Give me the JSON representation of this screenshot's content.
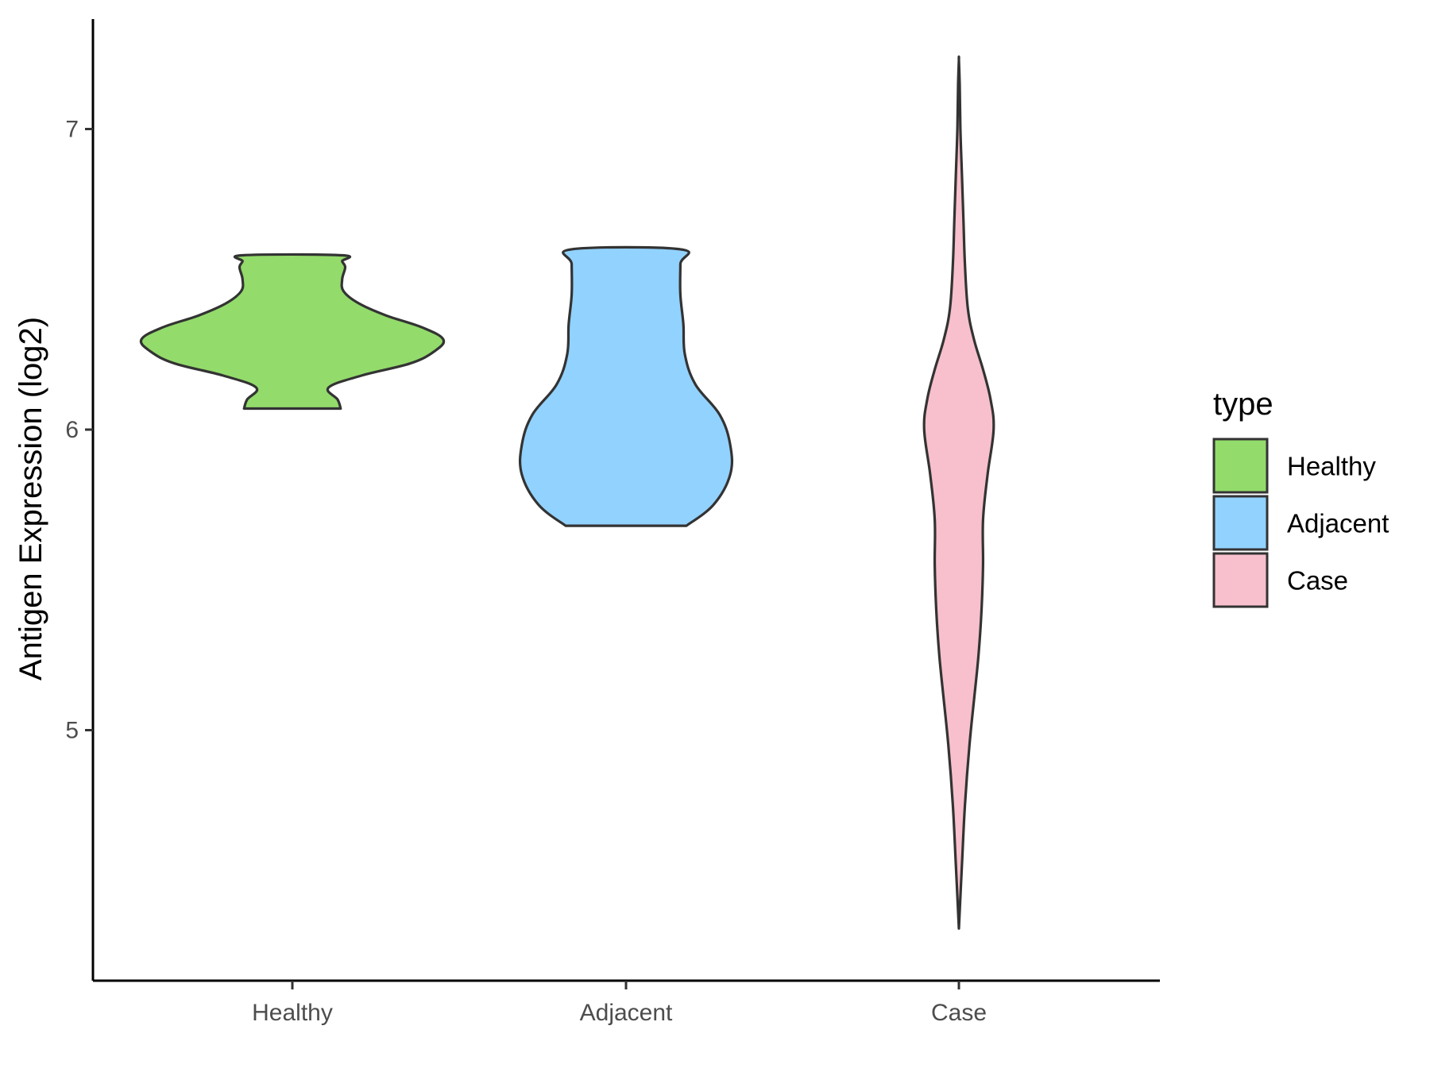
{
  "chart_data": {
    "type": "violin",
    "title": "",
    "xlabel": "",
    "ylabel": "Antigen Expression (log2)",
    "ylim": [
      4.2,
      7.37
    ],
    "yticks": [
      5,
      6,
      7
    ],
    "grid": false,
    "legend": {
      "title": "type",
      "position": "right",
      "entries": [
        "Healthy",
        "Adjacent",
        "Case"
      ]
    },
    "categories": [
      "Healthy",
      "Adjacent",
      "Case"
    ],
    "series": [
      {
        "name": "Healthy",
        "color": "#93DB6B",
        "range": [
          6.07,
          6.58
        ],
        "density": [
          [
            6.07,
            0.32
          ],
          [
            6.1,
            0.3
          ],
          [
            6.14,
            0.24
          ],
          [
            6.18,
            0.46
          ],
          [
            6.22,
            0.78
          ],
          [
            6.26,
            0.94
          ],
          [
            6.3,
            1.0
          ],
          [
            6.34,
            0.86
          ],
          [
            6.38,
            0.62
          ],
          [
            6.42,
            0.44
          ],
          [
            6.46,
            0.34
          ],
          [
            6.5,
            0.33
          ],
          [
            6.54,
            0.35
          ],
          [
            6.56,
            0.33
          ],
          [
            6.58,
            0.33
          ]
        ]
      },
      {
        "name": "Adjacent",
        "color": "#92D2FF",
        "range": [
          5.68,
          6.6
        ],
        "density": [
          [
            5.68,
            0.4
          ],
          [
            5.75,
            0.58
          ],
          [
            5.85,
            0.69
          ],
          [
            5.95,
            0.69
          ],
          [
            6.05,
            0.62
          ],
          [
            6.15,
            0.46
          ],
          [
            6.25,
            0.39
          ],
          [
            6.35,
            0.38
          ],
          [
            6.45,
            0.36
          ],
          [
            6.55,
            0.36
          ],
          [
            6.6,
            0.36
          ]
        ]
      },
      {
        "name": "Case",
        "color": "#F7C0CC",
        "range": [
          4.34,
          7.23
        ],
        "density": [
          [
            4.34,
            0.0
          ],
          [
            4.55,
            0.02
          ],
          [
            4.75,
            0.04
          ],
          [
            4.95,
            0.07
          ],
          [
            5.1,
            0.1
          ],
          [
            5.25,
            0.13
          ],
          [
            5.4,
            0.15
          ],
          [
            5.55,
            0.16
          ],
          [
            5.7,
            0.16
          ],
          [
            5.85,
            0.19
          ],
          [
            6.0,
            0.23
          ],
          [
            6.1,
            0.21
          ],
          [
            6.2,
            0.16
          ],
          [
            6.3,
            0.1
          ],
          [
            6.4,
            0.06
          ],
          [
            6.55,
            0.04
          ],
          [
            6.7,
            0.03
          ],
          [
            6.85,
            0.02
          ],
          [
            7.0,
            0.01
          ],
          [
            7.15,
            0.005
          ],
          [
            7.23,
            0.0
          ]
        ]
      }
    ]
  }
}
